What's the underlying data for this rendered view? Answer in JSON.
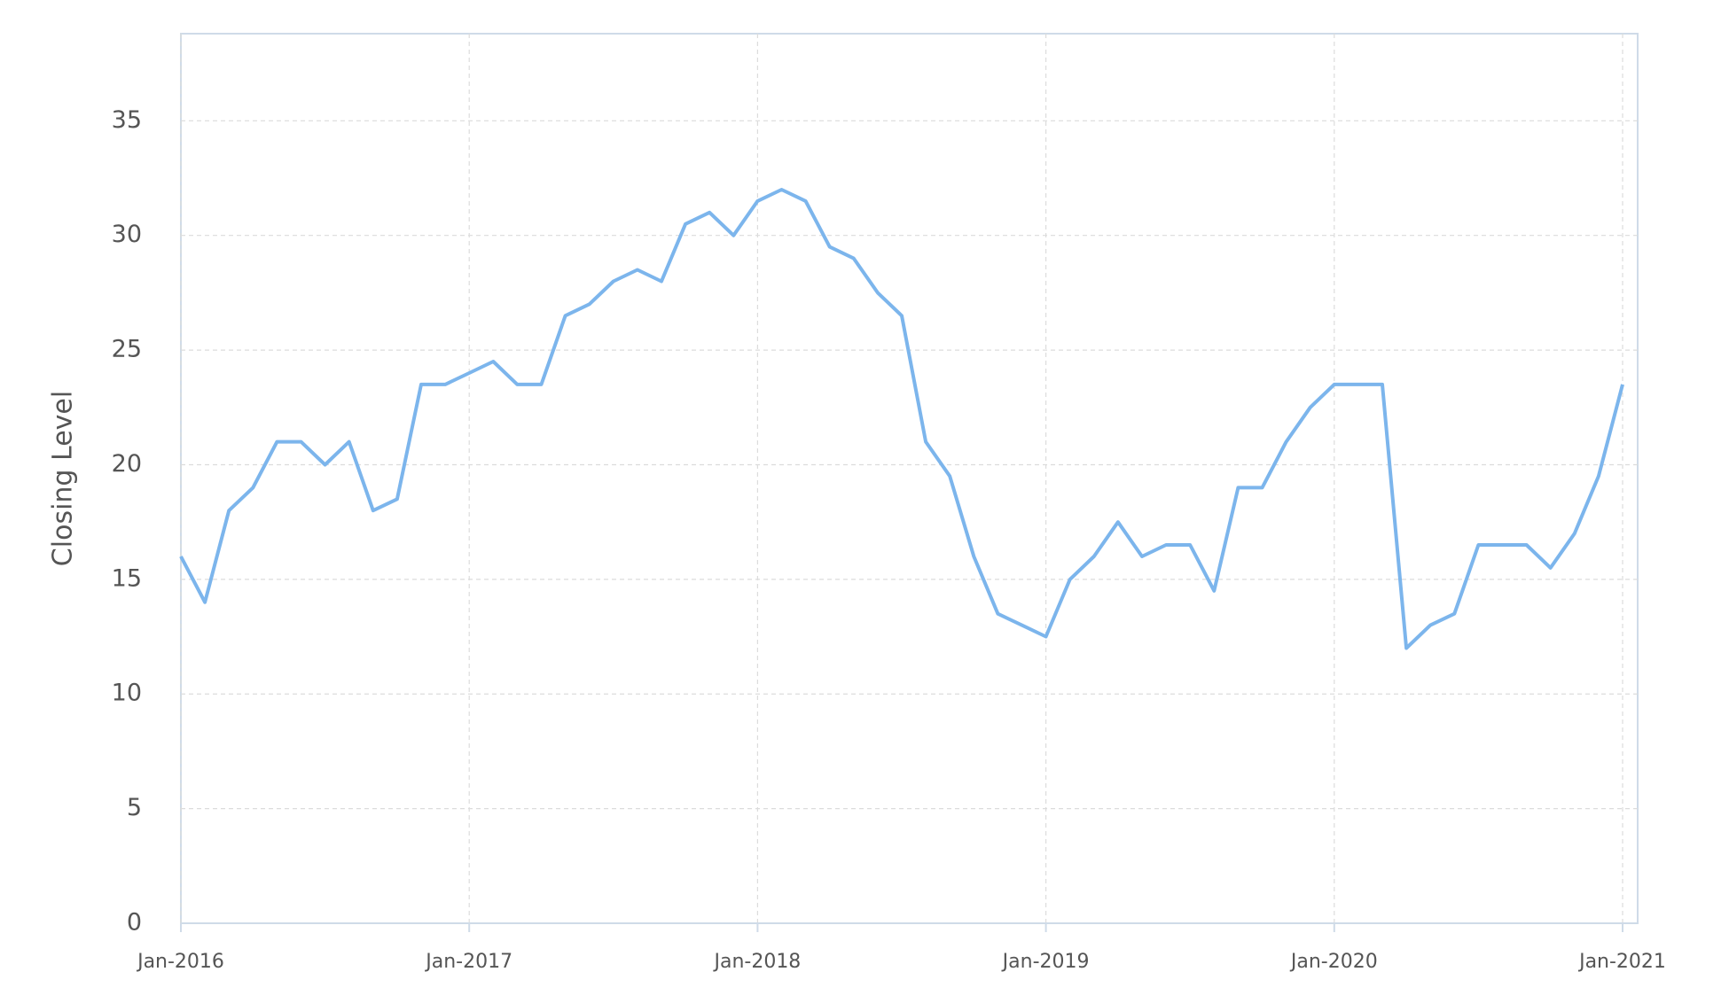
{
  "chart_data": {
    "type": "line",
    "y_label": "Closing Level",
    "x": [
      "2016-01",
      "2016-02",
      "2016-03",
      "2016-04",
      "2016-05",
      "2016-06",
      "2016-07",
      "2016-08",
      "2016-09",
      "2016-10",
      "2016-11",
      "2016-12",
      "2017-01",
      "2017-02",
      "2017-03",
      "2017-04",
      "2017-05",
      "2017-06",
      "2017-07",
      "2017-08",
      "2017-09",
      "2017-10",
      "2017-11",
      "2017-12",
      "2018-01",
      "2018-02",
      "2018-03",
      "2018-04",
      "2018-05",
      "2018-06",
      "2018-07",
      "2018-08",
      "2018-09",
      "2018-10",
      "2018-11",
      "2018-12",
      "2019-01",
      "2019-02",
      "2019-03",
      "2019-04",
      "2019-05",
      "2019-06",
      "2019-07",
      "2019-08",
      "2019-09",
      "2019-10",
      "2019-11",
      "2019-12",
      "2020-01",
      "2020-02",
      "2020-03",
      "2020-04",
      "2020-05",
      "2020-06",
      "2020-07",
      "2020-08",
      "2020-09",
      "2020-10",
      "2020-11",
      "2020-12",
      "2021-01"
    ],
    "series": [
      {
        "name": "Closing Level",
        "color": "#7cb5ec",
        "values": [
          16,
          14,
          18,
          19,
          21,
          21,
          20,
          21,
          18,
          18.5,
          23.5,
          23.5,
          24,
          24.5,
          23.5,
          23.5,
          26.5,
          27,
          28,
          28.5,
          28,
          30.5,
          31,
          30,
          31.5,
          32,
          31.5,
          29.5,
          29,
          27.5,
          26.5,
          21,
          19.5,
          16,
          13.5,
          13,
          12.5,
          15,
          16,
          17.5,
          16,
          16.5,
          16.5,
          14.5,
          19,
          19,
          21,
          22.5,
          23.5,
          23.5,
          23.5,
          12,
          13,
          13.5,
          16.5,
          16.5,
          16.5,
          15.5,
          17,
          19.5,
          23.5
        ]
      }
    ],
    "xlim": [
      "2016-01",
      "2021-01"
    ],
    "xticks": [
      {
        "value": "2016-01",
        "label": "Jan-2016"
      },
      {
        "value": "2017-01",
        "label": "Jan-2017"
      },
      {
        "value": "2018-01",
        "label": "Jan-2018"
      },
      {
        "value": "2019-01",
        "label": "Jan-2019"
      },
      {
        "value": "2020-01",
        "label": "Jan-2020"
      },
      {
        "value": "2021-01",
        "label": "Jan-2021"
      }
    ],
    "ylim": [
      0,
      38.8
    ],
    "yticks": [
      0,
      5,
      10,
      15,
      20,
      25,
      30,
      35
    ],
    "grid": true
  }
}
